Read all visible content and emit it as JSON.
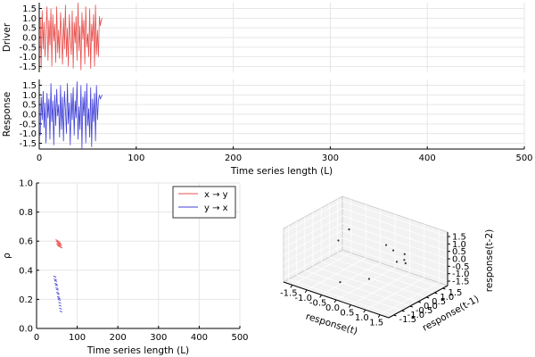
{
  "chart_data": [
    {
      "id": "driver",
      "type": "line",
      "ylabel": "Driver",
      "xlim": [
        0,
        500
      ],
      "ylim": [
        -1.8,
        1.8
      ],
      "yticks": [
        -1.5,
        -1.0,
        -0.5,
        0.0,
        0.5,
        1.0,
        1.5
      ],
      "color": "#e8504d",
      "series": [
        {
          "x": [
            1,
            2,
            3,
            4,
            5,
            6,
            7,
            8,
            9,
            10,
            11,
            12,
            13,
            14,
            15,
            16,
            17,
            18,
            19,
            20,
            21,
            22,
            23,
            24,
            25,
            26,
            27,
            28,
            29,
            30,
            31,
            32,
            33,
            34,
            35,
            36,
            37,
            38,
            39,
            40,
            41,
            42,
            43,
            44,
            45,
            46,
            47,
            48,
            49,
            50,
            51,
            52,
            53,
            54,
            55,
            56,
            57,
            58,
            59,
            60,
            61,
            62,
            63,
            64,
            65
          ],
          "y": [
            1.0,
            -1.6,
            1.4,
            -0.6,
            0.8,
            -1.0,
            0.3,
            1.6,
            -1.2,
            0.9,
            -0.4,
            1.5,
            -1.5,
            1.2,
            -0.2,
            0.7,
            -1.3,
            1.6,
            -0.8,
            0.4,
            -1.1,
            1.3,
            0.1,
            -1.4,
            1.0,
            -0.6,
            1.7,
            -1.0,
            0.5,
            -1.5,
            1.2,
            0.0,
            -0.9,
            1.4,
            -1.6,
            0.8,
            -0.3,
            1.1,
            -1.2,
            1.8,
            -0.7,
            0.6,
            -1.7,
            1.3,
            -0.1,
            0.9,
            -1.4,
            1.6,
            -0.5,
            0.2,
            -1.0,
            1.5,
            -1.6,
            0.7,
            -0.2,
            1.2,
            -1.5,
            1.7,
            -0.9,
            0.4,
            -1.0,
            1.1,
            0.6,
            0.9,
            1.0
          ]
        }
      ]
    },
    {
      "id": "response",
      "type": "line",
      "ylabel": "Response",
      "xlabel": "Time series length (L)",
      "xlim": [
        0,
        500
      ],
      "xticks": [
        0,
        100,
        200,
        300,
        400,
        500
      ],
      "ylim": [
        -1.8,
        1.8
      ],
      "yticks": [
        -1.5,
        -1.0,
        -0.5,
        0.0,
        0.5,
        1.0,
        1.5
      ],
      "color": "#4141d9",
      "series": [
        {
          "x": [
            1,
            2,
            3,
            4,
            5,
            6,
            7,
            8,
            9,
            10,
            11,
            12,
            13,
            14,
            15,
            16,
            17,
            18,
            19,
            20,
            21,
            22,
            23,
            24,
            25,
            26,
            27,
            28,
            29,
            30,
            31,
            32,
            33,
            34,
            35,
            36,
            37,
            38,
            39,
            40,
            41,
            42,
            43,
            44,
            45,
            46,
            47,
            48,
            49,
            50,
            51,
            52,
            53,
            54,
            55,
            56,
            57,
            58,
            59,
            60,
            61,
            62,
            63,
            64,
            65
          ],
          "y": [
            -1.1,
            0.9,
            -0.3,
            1.2,
            -0.7,
            0.6,
            -1.5,
            1.1,
            -0.2,
            0.8,
            -1.3,
            1.6,
            -0.4,
            0.7,
            -1.6,
            1.0,
            -0.6,
            1.3,
            -0.1,
            0.5,
            -1.2,
            1.5,
            -0.8,
            0.9,
            -1.4,
            1.2,
            0.2,
            -1.0,
            1.6,
            -0.5,
            0.6,
            -1.6,
            1.1,
            -0.3,
            1.4,
            -1.1,
            0.7,
            -0.2,
            1.7,
            -1.3,
            0.4,
            -0.8,
            1.5,
            -1.8,
            0.9,
            -0.1,
            1.2,
            -1.5,
            1.6,
            -0.6,
            0.3,
            -1.2,
            1.4,
            -1.7,
            0.8,
            -0.4,
            1.1,
            -1.4,
            1.5,
            -0.3,
            0.7,
            1.0,
            0.8,
            0.9,
            1.0
          ]
        }
      ]
    },
    {
      "id": "ccm",
      "type": "scatter",
      "ylabel": "ρ",
      "xlabel": "Time series length (L)",
      "xlim": [
        0,
        500
      ],
      "xticks": [
        0,
        100,
        200,
        300,
        400,
        500
      ],
      "ylim": [
        0.0,
        1.0
      ],
      "yticks": [
        0.0,
        0.2,
        0.4,
        0.6,
        0.8,
        1.0
      ],
      "legend": "top-right",
      "series": [
        {
          "name": "x → y",
          "color": "#e8504d",
          "x": [
            50,
            51,
            52,
            53,
            54,
            55,
            56,
            57,
            58,
            59,
            60
          ],
          "y": [
            0.61,
            0.6,
            0.58,
            0.59,
            0.57,
            0.6,
            0.58,
            0.59,
            0.57,
            0.58,
            0.56
          ]
        },
        {
          "name": "y → x",
          "color": "#4141d9",
          "x": [
            45,
            46,
            47,
            48,
            49,
            50,
            51,
            52,
            53,
            54,
            55,
            56,
            57,
            58,
            59,
            60
          ],
          "y": [
            0.36,
            0.34,
            0.33,
            0.31,
            0.3,
            0.28,
            0.27,
            0.25,
            0.24,
            0.22,
            0.21,
            0.2,
            0.18,
            0.16,
            0.14,
            0.12
          ]
        }
      ]
    },
    {
      "id": "embedding",
      "type": "scatter",
      "xlabel": "response(t)",
      "ylabel": "response(t-1)",
      "zlabel": "response(t-2)",
      "xticks": [
        -1.5,
        -1.0,
        -0.5,
        0.0,
        0.5,
        1.0,
        1.5
      ],
      "yticks": [
        -1.5,
        -1.0,
        -0.5,
        0.0,
        0.5,
        1.0,
        1.5
      ],
      "zticks": [
        -1.5,
        -1.0,
        -0.5,
        0.0,
        0.5,
        1.0,
        1.5
      ],
      "lim": [
        -1.8,
        1.8
      ],
      "points": [
        {
          "x": -0.9,
          "y": 0.6,
          "z": 0.9
        },
        {
          "x": -1.1,
          "y": 0.3,
          "z": 0.2
        },
        {
          "x": 0.2,
          "y": 0.9,
          "z": 0.4
        },
        {
          "x": 0.5,
          "y": 0.8,
          "z": 0.3
        },
        {
          "x": 0.9,
          "y": 0.3,
          "z": 0.1
        },
        {
          "x": 1.1,
          "y": 0.4,
          "z": 0.3
        },
        {
          "x": 1.2,
          "y": 0.3,
          "z": 0.2
        },
        {
          "x": 0.4,
          "y": -0.5,
          "z": -0.9
        },
        {
          "x": -0.2,
          "y": -1.2,
          "z": -1.1
        },
        {
          "x": 1.0,
          "y": 0.6,
          "z": 0.5
        }
      ]
    }
  ]
}
